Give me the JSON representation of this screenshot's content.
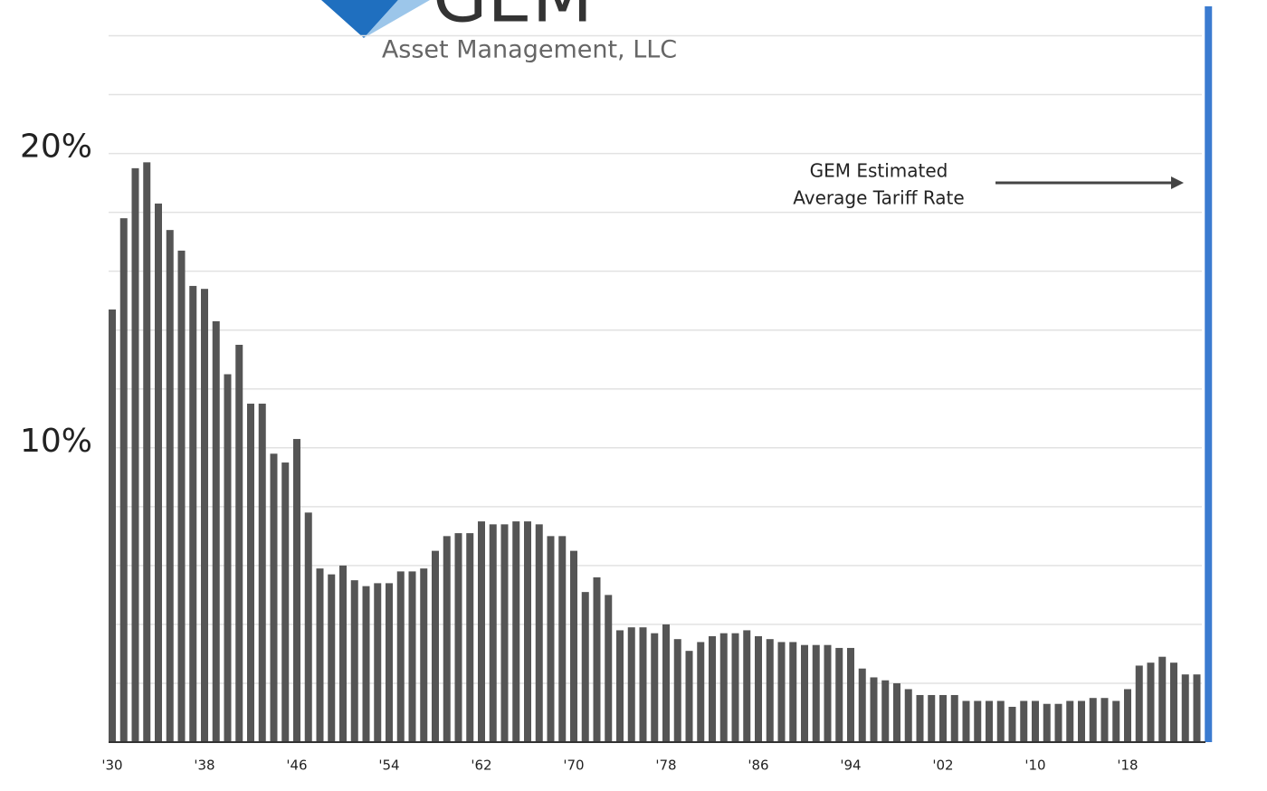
{
  "logo": {
    "name": "GEM",
    "subtitle": "Asset Management, LLC"
  },
  "chart_data": {
    "type": "bar",
    "categories": [
      "'30",
      null,
      null,
      null,
      null,
      null,
      null,
      null,
      "'38",
      null,
      null,
      null,
      null,
      null,
      null,
      null,
      "'46",
      null,
      null,
      null,
      null,
      null,
      null,
      null,
      "'54",
      null,
      null,
      null,
      null,
      null,
      null,
      null,
      "'62",
      null,
      null,
      null,
      null,
      null,
      null,
      null,
      "'70",
      null,
      null,
      null,
      null,
      null,
      null,
      null,
      "'78",
      null,
      null,
      null,
      null,
      null,
      null,
      null,
      "'86",
      null,
      null,
      null,
      null,
      null,
      null,
      null,
      "'94",
      null,
      null,
      null,
      null,
      null,
      null,
      null,
      "'02",
      null,
      null,
      null,
      null,
      null,
      null,
      null,
      "'10",
      null,
      null,
      null,
      null,
      null,
      null,
      null,
      "'18",
      null,
      null,
      null,
      null,
      null,
      null
    ],
    "values": [
      14.7,
      17.8,
      19.5,
      19.7,
      18.3,
      17.4,
      16.7,
      15.5,
      15.4,
      14.3,
      12.5,
      13.5,
      11.5,
      11.5,
      9.8,
      9.5,
      10.3,
      7.8,
      5.9,
      5.7,
      6.0,
      5.5,
      5.3,
      5.4,
      5.4,
      5.8,
      5.8,
      5.9,
      6.5,
      7.0,
      7.1,
      7.1,
      7.5,
      7.4,
      7.4,
      7.5,
      7.5,
      7.4,
      7.0,
      7.0,
      6.5,
      5.1,
      5.6,
      5.0,
      3.8,
      3.9,
      3.9,
      3.7,
      4.0,
      3.5,
      3.1,
      3.4,
      3.6,
      3.7,
      3.7,
      3.8,
      3.6,
      3.5,
      3.4,
      3.4,
      3.3,
      3.3,
      3.3,
      3.2,
      3.2,
      2.5,
      2.2,
      2.1,
      2.0,
      1.8,
      1.6,
      1.6,
      1.6,
      1.6,
      1.4,
      1.4,
      1.4,
      1.4,
      1.2,
      1.4,
      1.4,
      1.3,
      1.3,
      1.4,
      1.4,
      1.5,
      1.5,
      1.4,
      1.8,
      2.6,
      2.7,
      2.9,
      2.7,
      2.3,
      2.3
    ],
    "color": "#555555",
    "estimate": {
      "label": [
        "GEM Estimated",
        "Average Tariff Rate"
      ],
      "value": 25,
      "color": "#3b7bd0"
    },
    "ylim": [
      0,
      25
    ],
    "yticks": [
      {
        "value": 10,
        "label": "10%"
      },
      {
        "value": 20,
        "label": "20%"
      }
    ],
    "grid_yticks": [
      2,
      4,
      6,
      8,
      10,
      12,
      14,
      16,
      18,
      20,
      22,
      24
    ],
    "grid": true
  }
}
